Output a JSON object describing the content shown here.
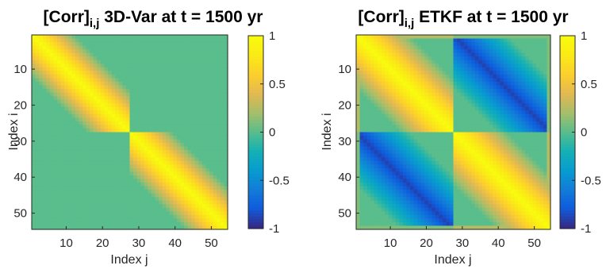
{
  "chart_data": [
    {
      "type": "heatmap",
      "title_main": "[Corr]",
      "title_sub": "i,j",
      "title_rest": " 3D-Var at t = 1500 yr",
      "xlabel": "Index j",
      "ylabel": "Index i",
      "n": 54,
      "xlim": [
        0.5,
        54.5
      ],
      "ylim": [
        0.5,
        54.5
      ],
      "xticks": [
        10,
        20,
        30,
        40,
        50
      ],
      "yticks": [
        10,
        20,
        30,
        40,
        50
      ],
      "block_size": 27,
      "correlation_length": 12,
      "off_diagonal_correlation": 0,
      "colorbar": {
        "ticks": [
          1,
          0.5,
          0,
          -0.5,
          -1
        ],
        "tick_labels": [
          "1",
          "0.5",
          "0",
          "-0.5",
          "-1"
        ],
        "clim": [
          -1,
          1
        ],
        "colormap": "parula"
      }
    },
    {
      "type": "heatmap",
      "title_main": "[Corr]",
      "title_sub": "i,j",
      "title_rest": " ETKF at t = 1500 yr",
      "xlabel": "Index j",
      "ylabel": "Index i",
      "n": 54,
      "xlim": [
        0.5,
        54.5
      ],
      "ylim": [
        0.5,
        54.5
      ],
      "xticks": [
        10,
        20,
        30,
        40,
        50
      ],
      "yticks": [
        10,
        20,
        30,
        40,
        50
      ],
      "block_size": 27,
      "correlation_length": 15,
      "off_diagonal_correlation": -0.9,
      "edge_value": 0.25,
      "colorbar": {
        "ticks": [
          1,
          0.5,
          0,
          -0.5,
          -1
        ],
        "tick_labels": [
          "1",
          "0.5",
          "0",
          "-0.5",
          "-1"
        ],
        "clim": [
          -1,
          1
        ],
        "colormap": "parula"
      }
    }
  ]
}
